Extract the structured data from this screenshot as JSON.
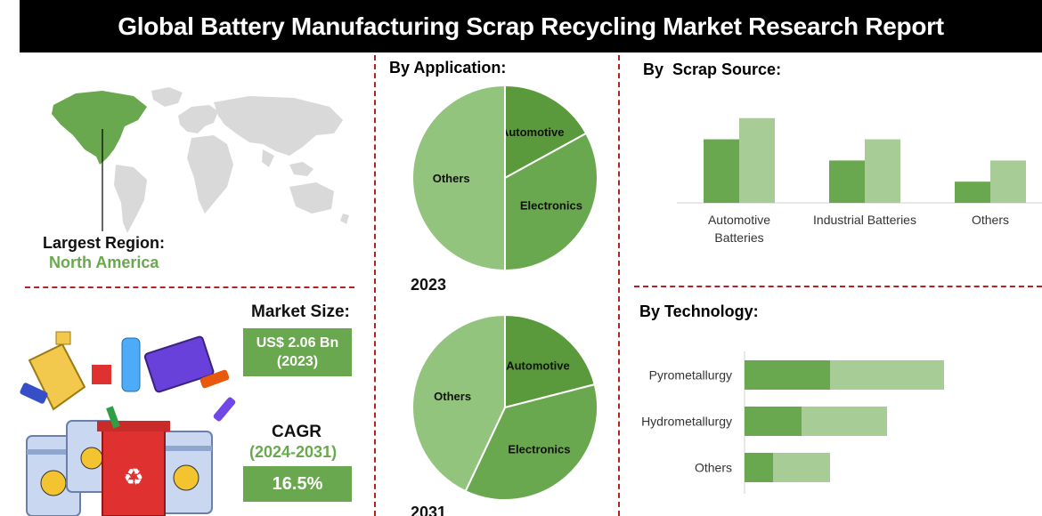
{
  "title": "Global Battery Manufacturing Scrap Recycling Market Research Report",
  "region": {
    "label": "Largest Region:",
    "value": "North America"
  },
  "market_size": {
    "label": "Market Size:",
    "value": "US$ 2.06 Bn",
    "year": "(2023)"
  },
  "cagr": {
    "label": "CAGR",
    "period": "(2024-2031)",
    "value": "16.5%"
  },
  "colors": {
    "dark_green": "#5a9a3d",
    "mid_green": "#6aa84f",
    "light_green": "#93c47d",
    "pale_green": "#a8cc95",
    "divider": "#b22222"
  },
  "chart_data": [
    {
      "type": "pie",
      "title": "By Application:",
      "year_label": "2023",
      "slices": [
        {
          "label": "Automotive",
          "value": 17
        },
        {
          "label": "Electronics",
          "value": 33
        },
        {
          "label": "Others",
          "value": 50
        }
      ]
    },
    {
      "type": "pie",
      "year_label": "2031",
      "slices": [
        {
          "label": "Automotive",
          "value": 21
        },
        {
          "label": "Electronics",
          "value": 36
        },
        {
          "label": "Others",
          "value": 43
        }
      ]
    },
    {
      "type": "bar",
      "title": "By  Scrap Source:",
      "categories": [
        "Automotive\nBatteries",
        "Industrial Batteries",
        "Others"
      ],
      "series": [
        {
          "values": [
            3,
            2,
            1
          ]
        },
        {
          "values": [
            4,
            3,
            2
          ]
        }
      ],
      "ylim": [
        0,
        4.2
      ]
    },
    {
      "type": "bar",
      "orientation": "horizontal",
      "title": "By Technology:",
      "categories": [
        "Pyrometallurgy",
        "Hydrometallurgy",
        "Others"
      ],
      "series": [
        {
          "values": [
            3,
            2,
            1
          ]
        },
        {
          "values": [
            7,
            5,
            3
          ]
        }
      ],
      "xlim": [
        0,
        7.5
      ]
    }
  ]
}
